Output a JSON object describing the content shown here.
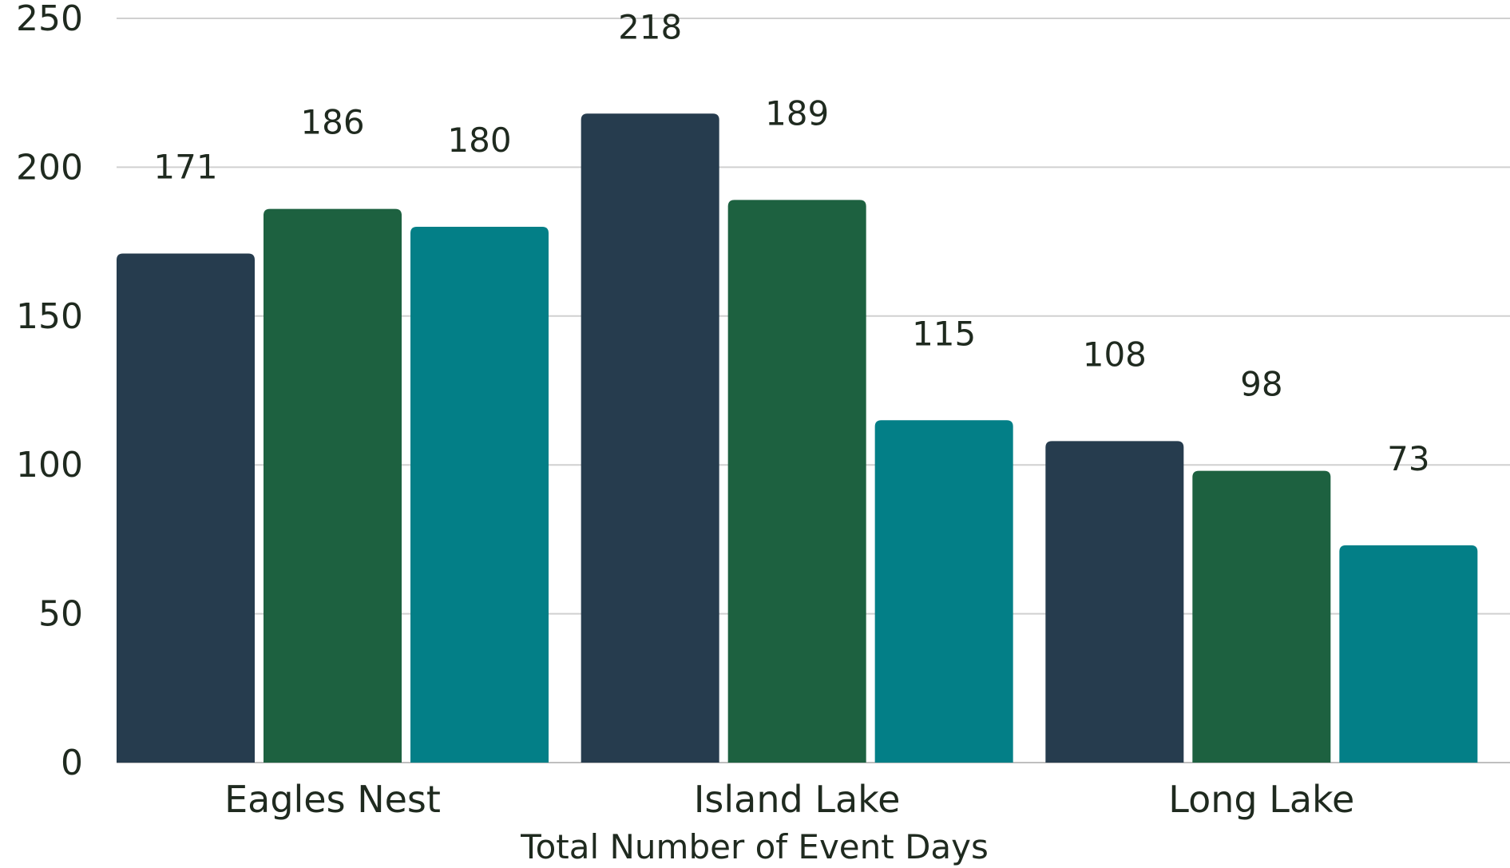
{
  "chart_data": {
    "type": "bar",
    "title": "",
    "xlabel": "Total Number of Event Days",
    "ylabel": "",
    "categories": [
      "Eagles Nest",
      "Island Lake",
      "Long Lake"
    ],
    "series": [
      {
        "values": [
          171,
          218,
          108
        ],
        "color": "#263C4E"
      },
      {
        "values": [
          186,
          189,
          98
        ],
        "color": "#1D6140"
      },
      {
        "values": [
          180,
          115,
          73
        ],
        "color": "#037F87"
      }
    ],
    "ylim": [
      0,
      250
    ],
    "yticks": [
      0,
      50,
      100,
      150,
      200,
      250
    ],
    "grid": true,
    "legend": "none",
    "data_labels": true
  }
}
